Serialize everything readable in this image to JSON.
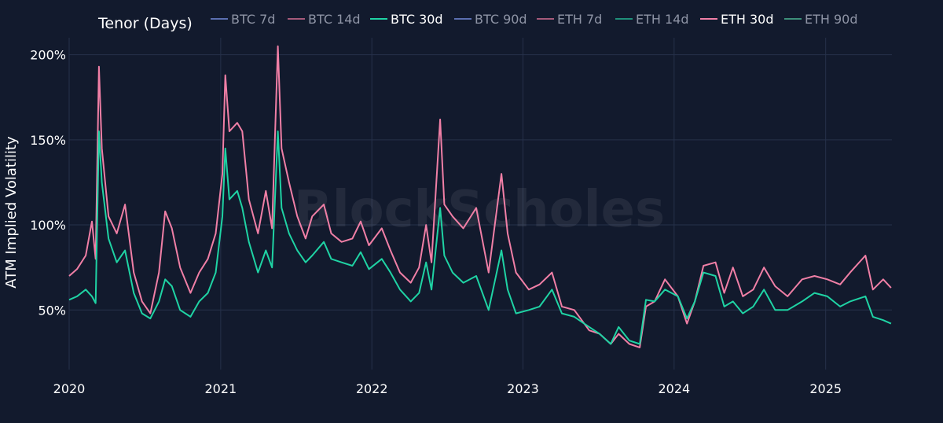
{
  "chart_data": {
    "type": "line",
    "legend_title": "Tenor (Days)",
    "legend_placement": "top",
    "watermark": "BlockScholes",
    "ylabel": "ATM Implied Volatility",
    "xlabel": "",
    "ylim": [
      0.15,
      2.1
    ],
    "xlim": [
      "2020-01-01",
      "2025-06-10"
    ],
    "grid": true,
    "x_ticks": [
      "2020",
      "2021",
      "2022",
      "2023",
      "2024",
      "2025"
    ],
    "y_ticks": [
      {
        "value": 0.5,
        "label": "50%"
      },
      {
        "value": 1.0,
        "label": "100%"
      },
      {
        "value": 1.5,
        "label": "150%"
      },
      {
        "value": 2.0,
        "label": "200%"
      }
    ],
    "colors": {
      "background": "#121a2d",
      "grid": "#26314a",
      "btc": "#1fd3a4",
      "eth": "#f07fa6",
      "legend_muted": "#8e94a5",
      "legend_active": "#ffffff"
    },
    "legend": [
      {
        "name": "BTC 7d",
        "color": "#5b6fb0",
        "active": false
      },
      {
        "name": "BTC 14d",
        "color": "#a55a7a",
        "active": false
      },
      {
        "name": "BTC 30d",
        "color": "#1fd3a4",
        "active": true
      },
      {
        "name": "BTC 90d",
        "color": "#5b6fb0",
        "active": false
      },
      {
        "name": "ETH 7d",
        "color": "#a55a7a",
        "active": false
      },
      {
        "name": "ETH 14d",
        "color": "#1f8f7a",
        "active": false
      },
      {
        "name": "ETH 30d",
        "color": "#f07fa6",
        "active": true
      },
      {
        "name": "ETH 90d",
        "color": "#3d8f7a",
        "active": false
      }
    ],
    "series": [
      {
        "name": "ETH 30d",
        "points": [
          [
            "2020-01-01",
            0.7
          ],
          [
            "2020-01-20",
            0.74
          ],
          [
            "2020-02-10",
            0.82
          ],
          [
            "2020-02-25",
            1.02
          ],
          [
            "2020-03-05",
            0.8
          ],
          [
            "2020-03-13",
            1.93
          ],
          [
            "2020-03-20",
            1.45
          ],
          [
            "2020-04-05",
            1.05
          ],
          [
            "2020-04-25",
            0.95
          ],
          [
            "2020-05-15",
            1.12
          ],
          [
            "2020-06-05",
            0.72
          ],
          [
            "2020-06-25",
            0.55
          ],
          [
            "2020-07-15",
            0.48
          ],
          [
            "2020-08-05",
            0.72
          ],
          [
            "2020-08-20",
            1.08
          ],
          [
            "2020-09-05",
            0.98
          ],
          [
            "2020-09-25",
            0.75
          ],
          [
            "2020-10-20",
            0.6
          ],
          [
            "2020-11-10",
            0.72
          ],
          [
            "2020-12-01",
            0.8
          ],
          [
            "2020-12-20",
            0.95
          ],
          [
            "2021-01-05",
            1.3
          ],
          [
            "2021-01-12",
            1.88
          ],
          [
            "2021-01-22",
            1.55
          ],
          [
            "2021-02-10",
            1.6
          ],
          [
            "2021-02-22",
            1.55
          ],
          [
            "2021-03-10",
            1.15
          ],
          [
            "2021-04-01",
            0.95
          ],
          [
            "2021-04-20",
            1.2
          ],
          [
            "2021-05-05",
            0.98
          ],
          [
            "2021-05-19",
            2.05
          ],
          [
            "2021-05-28",
            1.45
          ],
          [
            "2021-06-15",
            1.25
          ],
          [
            "2021-07-05",
            1.05
          ],
          [
            "2021-07-25",
            0.92
          ],
          [
            "2021-08-10",
            1.05
          ],
          [
            "2021-09-07",
            1.12
          ],
          [
            "2021-09-25",
            0.95
          ],
          [
            "2021-10-20",
            0.9
          ],
          [
            "2021-11-15",
            0.92
          ],
          [
            "2021-12-05",
            1.02
          ],
          [
            "2021-12-25",
            0.88
          ],
          [
            "2022-01-25",
            0.98
          ],
          [
            "2022-02-15",
            0.85
          ],
          [
            "2022-03-10",
            0.72
          ],
          [
            "2022-04-05",
            0.66
          ],
          [
            "2022-04-25",
            0.75
          ],
          [
            "2022-05-12",
            1.0
          ],
          [
            "2022-05-25",
            0.78
          ],
          [
            "2022-06-15",
            1.62
          ],
          [
            "2022-06-25",
            1.12
          ],
          [
            "2022-07-15",
            1.05
          ],
          [
            "2022-08-10",
            0.98
          ],
          [
            "2022-09-10",
            1.1
          ],
          [
            "2022-10-10",
            0.72
          ],
          [
            "2022-11-10",
            1.3
          ],
          [
            "2022-11-25",
            0.95
          ],
          [
            "2022-12-15",
            0.72
          ],
          [
            "2023-01-15",
            0.62
          ],
          [
            "2023-02-10",
            0.65
          ],
          [
            "2023-03-12",
            0.72
          ],
          [
            "2023-04-05",
            0.52
          ],
          [
            "2023-05-05",
            0.5
          ],
          [
            "2023-06-10",
            0.38
          ],
          [
            "2023-07-05",
            0.36
          ],
          [
            "2023-08-01",
            0.3
          ],
          [
            "2023-08-20",
            0.36
          ],
          [
            "2023-09-15",
            0.3
          ],
          [
            "2023-10-10",
            0.28
          ],
          [
            "2023-10-25",
            0.52
          ],
          [
            "2023-11-15",
            0.55
          ],
          [
            "2023-12-10",
            0.68
          ],
          [
            "2024-01-10",
            0.58
          ],
          [
            "2024-02-01",
            0.42
          ],
          [
            "2024-02-20",
            0.55
          ],
          [
            "2024-03-12",
            0.76
          ],
          [
            "2024-04-10",
            0.78
          ],
          [
            "2024-05-01",
            0.6
          ],
          [
            "2024-05-22",
            0.75
          ],
          [
            "2024-06-15",
            0.58
          ],
          [
            "2024-07-10",
            0.62
          ],
          [
            "2024-08-05",
            0.75
          ],
          [
            "2024-09-01",
            0.64
          ],
          [
            "2024-10-01",
            0.58
          ],
          [
            "2024-11-05",
            0.68
          ],
          [
            "2024-12-05",
            0.7
          ],
          [
            "2025-01-05",
            0.68
          ],
          [
            "2025-02-05",
            0.65
          ],
          [
            "2025-03-01",
            0.72
          ],
          [
            "2025-04-07",
            0.82
          ],
          [
            "2025-04-25",
            0.62
          ],
          [
            "2025-05-20",
            0.68
          ],
          [
            "2025-06-08",
            0.63
          ]
        ]
      },
      {
        "name": "BTC 30d",
        "points": [
          [
            "2020-01-01",
            0.56
          ],
          [
            "2020-01-20",
            0.58
          ],
          [
            "2020-02-10",
            0.62
          ],
          [
            "2020-02-25",
            0.58
          ],
          [
            "2020-03-05",
            0.54
          ],
          [
            "2020-03-13",
            1.55
          ],
          [
            "2020-03-20",
            1.25
          ],
          [
            "2020-04-05",
            0.92
          ],
          [
            "2020-04-25",
            0.78
          ],
          [
            "2020-05-15",
            0.85
          ],
          [
            "2020-06-05",
            0.6
          ],
          [
            "2020-06-25",
            0.48
          ],
          [
            "2020-07-15",
            0.45
          ],
          [
            "2020-08-05",
            0.55
          ],
          [
            "2020-08-20",
            0.68
          ],
          [
            "2020-09-05",
            0.64
          ],
          [
            "2020-09-25",
            0.5
          ],
          [
            "2020-10-20",
            0.46
          ],
          [
            "2020-11-10",
            0.55
          ],
          [
            "2020-12-01",
            0.6
          ],
          [
            "2020-12-20",
            0.72
          ],
          [
            "2021-01-05",
            1.05
          ],
          [
            "2021-01-12",
            1.45
          ],
          [
            "2021-01-22",
            1.15
          ],
          [
            "2021-02-10",
            1.2
          ],
          [
            "2021-02-22",
            1.1
          ],
          [
            "2021-03-10",
            0.9
          ],
          [
            "2021-04-01",
            0.72
          ],
          [
            "2021-04-20",
            0.85
          ],
          [
            "2021-05-05",
            0.75
          ],
          [
            "2021-05-19",
            1.55
          ],
          [
            "2021-05-28",
            1.1
          ],
          [
            "2021-06-15",
            0.95
          ],
          [
            "2021-07-05",
            0.85
          ],
          [
            "2021-07-25",
            0.78
          ],
          [
            "2021-08-10",
            0.82
          ],
          [
            "2021-09-07",
            0.9
          ],
          [
            "2021-09-25",
            0.8
          ],
          [
            "2021-10-20",
            0.78
          ],
          [
            "2021-11-15",
            0.76
          ],
          [
            "2021-12-05",
            0.84
          ],
          [
            "2021-12-25",
            0.74
          ],
          [
            "2022-01-25",
            0.8
          ],
          [
            "2022-02-15",
            0.72
          ],
          [
            "2022-03-10",
            0.62
          ],
          [
            "2022-04-05",
            0.55
          ],
          [
            "2022-04-25",
            0.6
          ],
          [
            "2022-05-12",
            0.78
          ],
          [
            "2022-05-25",
            0.62
          ],
          [
            "2022-06-15",
            1.1
          ],
          [
            "2022-06-25",
            0.82
          ],
          [
            "2022-07-15",
            0.72
          ],
          [
            "2022-08-10",
            0.66
          ],
          [
            "2022-09-10",
            0.7
          ],
          [
            "2022-10-10",
            0.5
          ],
          [
            "2022-11-10",
            0.85
          ],
          [
            "2022-11-25",
            0.62
          ],
          [
            "2022-12-15",
            0.48
          ],
          [
            "2023-01-15",
            0.5
          ],
          [
            "2023-02-10",
            0.52
          ],
          [
            "2023-03-12",
            0.62
          ],
          [
            "2023-04-05",
            0.48
          ],
          [
            "2023-05-05",
            0.46
          ],
          [
            "2023-06-10",
            0.4
          ],
          [
            "2023-07-05",
            0.36
          ],
          [
            "2023-08-01",
            0.3
          ],
          [
            "2023-08-20",
            0.4
          ],
          [
            "2023-09-15",
            0.32
          ],
          [
            "2023-10-10",
            0.3
          ],
          [
            "2023-10-25",
            0.56
          ],
          [
            "2023-11-15",
            0.55
          ],
          [
            "2023-12-10",
            0.62
          ],
          [
            "2024-01-10",
            0.58
          ],
          [
            "2024-02-01",
            0.45
          ],
          [
            "2024-02-20",
            0.55
          ],
          [
            "2024-03-12",
            0.72
          ],
          [
            "2024-04-10",
            0.7
          ],
          [
            "2024-05-01",
            0.52
          ],
          [
            "2024-05-22",
            0.55
          ],
          [
            "2024-06-15",
            0.48
          ],
          [
            "2024-07-10",
            0.52
          ],
          [
            "2024-08-05",
            0.62
          ],
          [
            "2024-09-01",
            0.5
          ],
          [
            "2024-10-01",
            0.5
          ],
          [
            "2024-11-05",
            0.55
          ],
          [
            "2024-12-05",
            0.6
          ],
          [
            "2025-01-05",
            0.58
          ],
          [
            "2025-02-05",
            0.52
          ],
          [
            "2025-03-01",
            0.55
          ],
          [
            "2025-04-07",
            0.58
          ],
          [
            "2025-04-25",
            0.46
          ],
          [
            "2025-05-20",
            0.44
          ],
          [
            "2025-06-08",
            0.42
          ]
        ]
      }
    ]
  }
}
